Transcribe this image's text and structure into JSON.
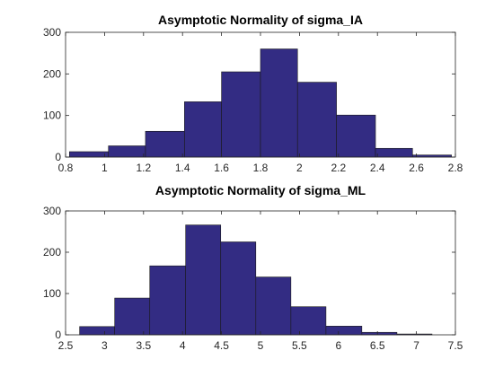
{
  "chart_data": [
    {
      "type": "bar",
      "title": "Asymptotic Normality of sigma_IA",
      "xlabel": "",
      "ylabel": "",
      "xlim": [
        0.8,
        2.8
      ],
      "ylim": [
        0,
        300
      ],
      "xticks": [
        "0.8",
        "1",
        "1.2",
        "1.4",
        "1.6",
        "1.8",
        "2",
        "2.2",
        "2.4",
        "2.6",
        "2.8"
      ],
      "yticks": [
        "0",
        "100",
        "200",
        "300"
      ],
      "bins": [
        {
          "x0": 0.82,
          "x1": 1.02,
          "count": 13
        },
        {
          "x0": 1.02,
          "x1": 1.21,
          "count": 27
        },
        {
          "x0": 1.21,
          "x1": 1.41,
          "count": 62
        },
        {
          "x0": 1.41,
          "x1": 1.6,
          "count": 133
        },
        {
          "x0": 1.6,
          "x1": 1.8,
          "count": 205
        },
        {
          "x0": 1.8,
          "x1": 1.99,
          "count": 260
        },
        {
          "x0": 1.99,
          "x1": 2.19,
          "count": 180
        },
        {
          "x0": 2.19,
          "x1": 2.39,
          "count": 101
        },
        {
          "x0": 2.39,
          "x1": 2.58,
          "count": 21
        },
        {
          "x0": 2.58,
          "x1": 2.78,
          "count": 5
        }
      ],
      "bar_color": "#332C83",
      "edge_color": "#1A1A1A",
      "grid": false
    },
    {
      "type": "bar",
      "title": "Asymptotic Normality of sigma_ML",
      "xlabel": "",
      "ylabel": "",
      "xlim": [
        2.5,
        7.5
      ],
      "ylim": [
        0,
        300
      ],
      "xticks": [
        "2.5",
        "3",
        "3.5",
        "4",
        "4.5",
        "5",
        "5.5",
        "6",
        "6.5",
        "7",
        "7.5"
      ],
      "yticks": [
        "0",
        "100",
        "200",
        "300"
      ],
      "bins": [
        {
          "x0": 2.68,
          "x1": 3.13,
          "count": 20
        },
        {
          "x0": 3.13,
          "x1": 3.58,
          "count": 89
        },
        {
          "x0": 3.58,
          "x1": 4.04,
          "count": 167
        },
        {
          "x0": 4.04,
          "x1": 4.49,
          "count": 266
        },
        {
          "x0": 4.49,
          "x1": 4.94,
          "count": 225
        },
        {
          "x0": 4.94,
          "x1": 5.39,
          "count": 140
        },
        {
          "x0": 5.39,
          "x1": 5.84,
          "count": 68
        },
        {
          "x0": 5.84,
          "x1": 6.3,
          "count": 21
        },
        {
          "x0": 6.3,
          "x1": 6.75,
          "count": 6
        },
        {
          "x0": 6.75,
          "x1": 7.2,
          "count": 2
        }
      ],
      "bar_color": "#332C83",
      "edge_color": "#1A1A1A",
      "grid": false
    }
  ]
}
